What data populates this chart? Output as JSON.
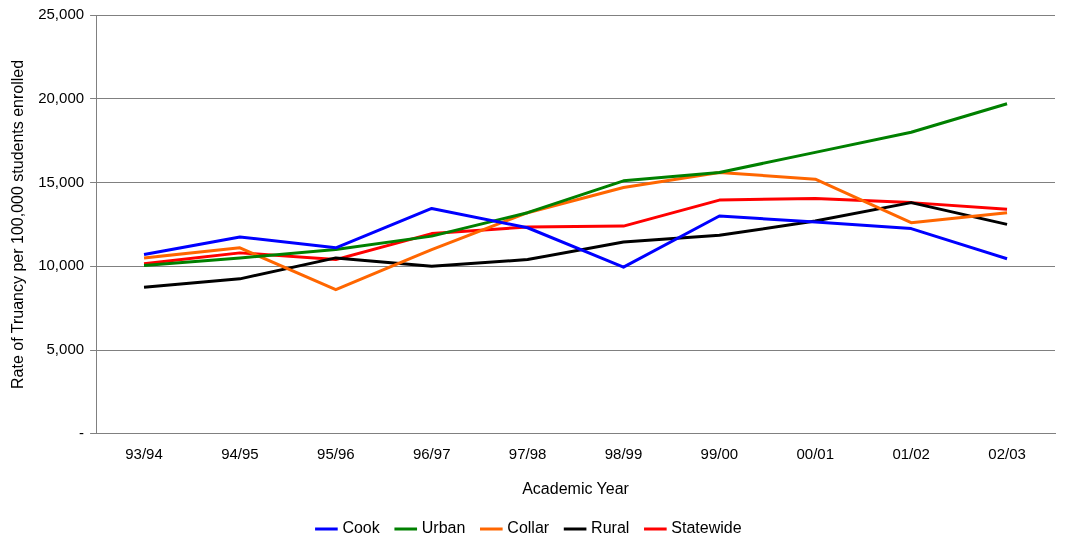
{
  "chart_data": {
    "type": "line",
    "xlabel": "Academic Year",
    "ylabel": "Rate of Truancy per 100,000 students enrolled",
    "categories": [
      "93/94",
      "94/95",
      "95/96",
      "96/97",
      "97/98",
      "98/99",
      "99/00",
      "00/01",
      "01/02",
      "02/03"
    ],
    "series": [
      {
        "name": "Cook",
        "color": "#0000ff",
        "values": [
          10700,
          11750,
          11100,
          13450,
          12300,
          9950,
          13000,
          12650,
          12250,
          10450
        ]
      },
      {
        "name": "Urban",
        "color": "#008000",
        "values": [
          10050,
          10500,
          11000,
          11800,
          13200,
          15100,
          15600,
          16800,
          18000,
          19700
        ]
      },
      {
        "name": "Collar",
        "color": "#ff6600",
        "values": [
          10500,
          11100,
          8600,
          11000,
          13200,
          14700,
          15600,
          15200,
          12600,
          13200
        ]
      },
      {
        "name": "Rural",
        "color": "#000000",
        "values": [
          8750,
          9250,
          10500,
          10000,
          10400,
          11450,
          11850,
          12700,
          13800,
          12500
        ]
      },
      {
        "name": "Statewide",
        "color": "#ff0000",
        "values": [
          10150,
          10800,
          10400,
          11950,
          12350,
          12400,
          13950,
          14050,
          13800,
          13400
        ]
      }
    ],
    "ylim": [
      0,
      25000
    ],
    "yticks": [
      {
        "value": 0,
        "label": "-"
      },
      {
        "value": 5000,
        "label": "5,000"
      },
      {
        "value": 10000,
        "label": "10,000"
      },
      {
        "value": 15000,
        "label": "15,000"
      },
      {
        "value": 20000,
        "label": "20,000"
      },
      {
        "value": 25000,
        "label": "25,000"
      }
    ],
    "grid": "y",
    "legend": "bottom",
    "marker": "none",
    "line_style": "solid"
  }
}
